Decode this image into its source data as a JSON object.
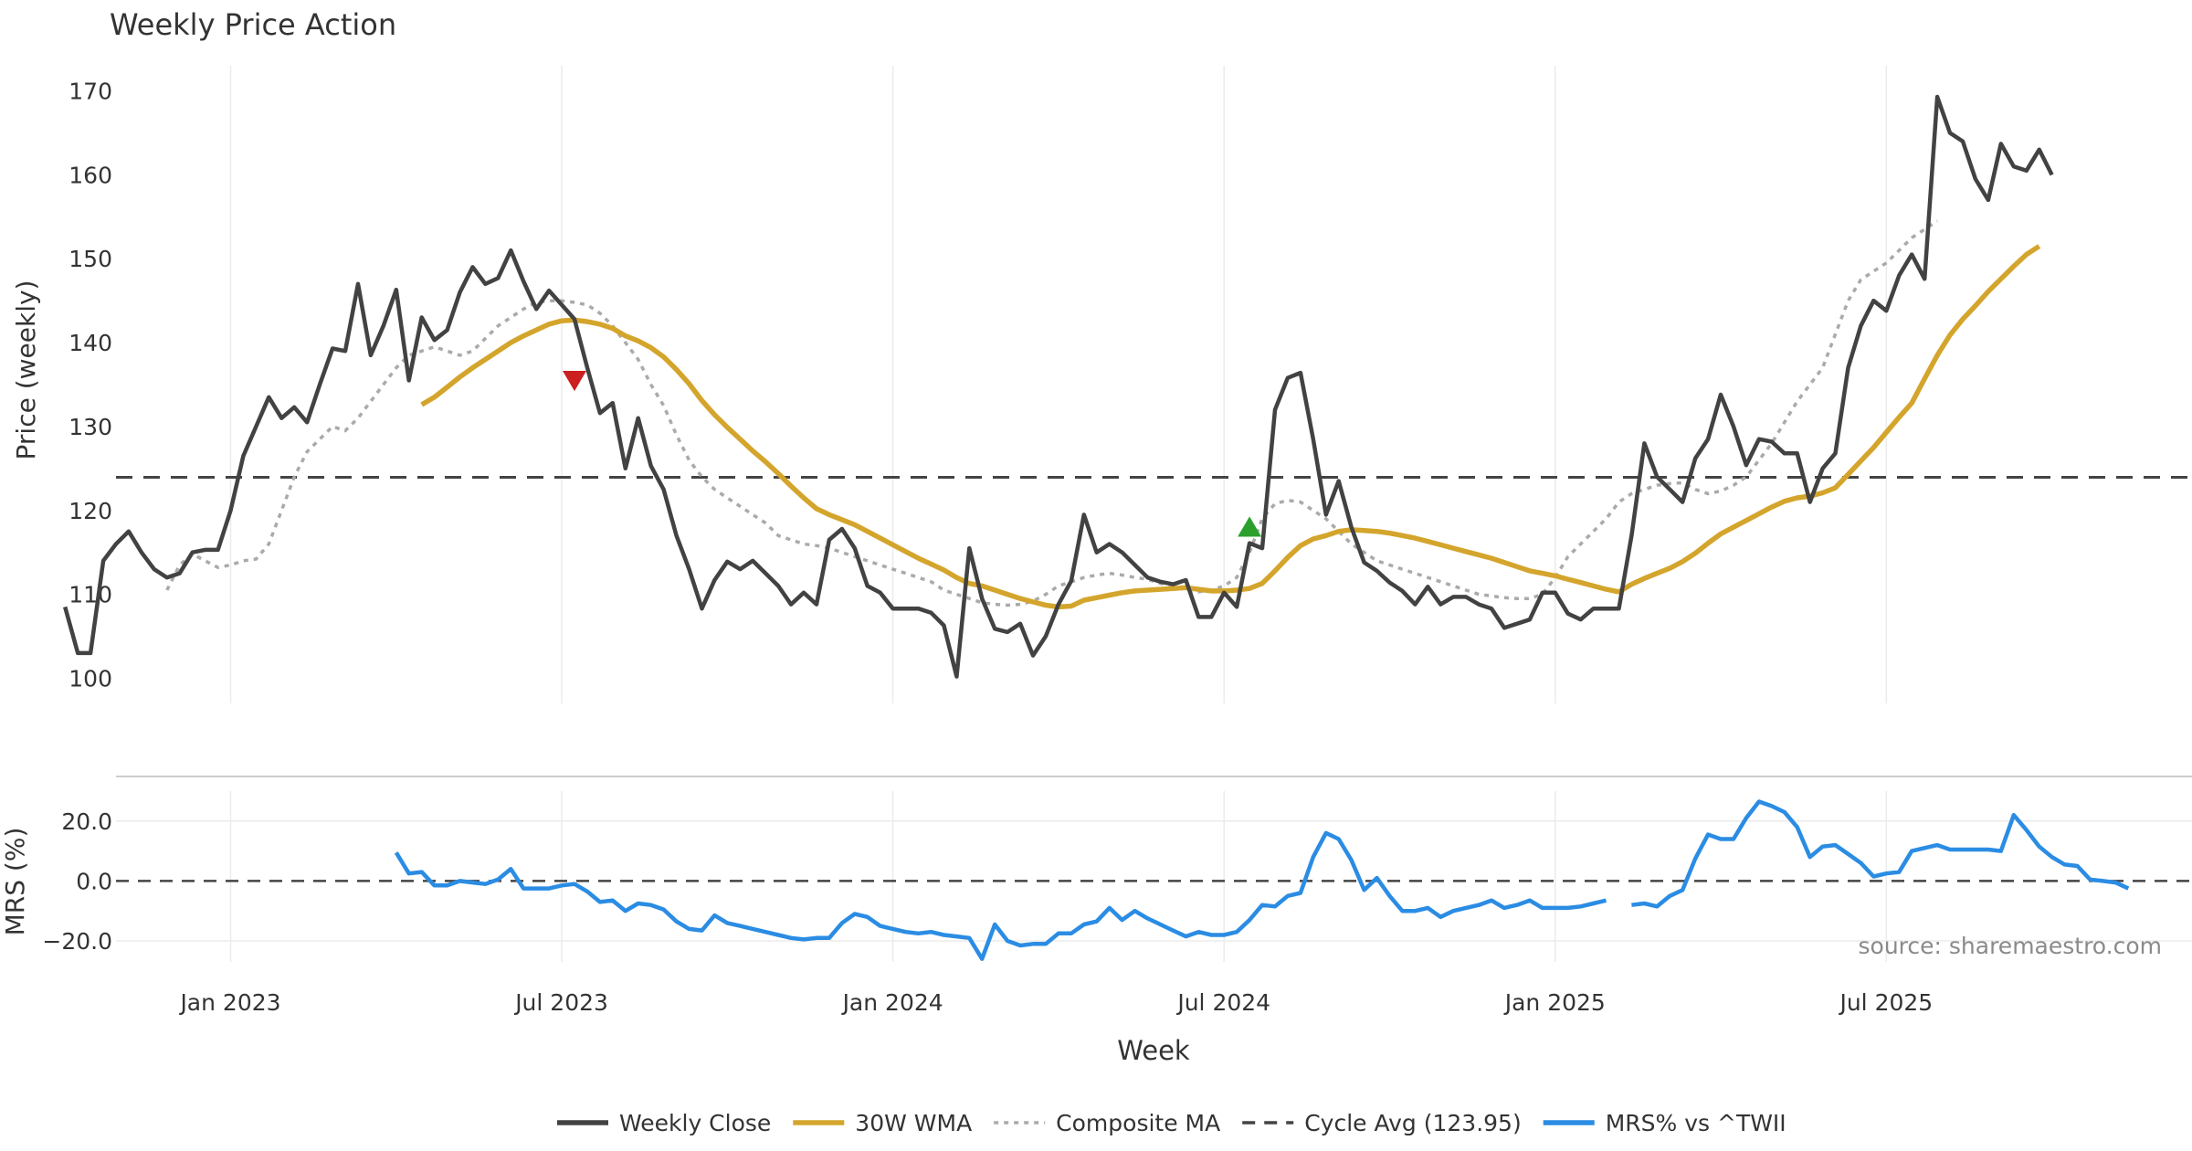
{
  "chart_data": {
    "type": "line",
    "title": "Weekly Price Action",
    "xlabel": "Week",
    "x_ticks": [
      {
        "label": "Jan 2023",
        "week": 13
      },
      {
        "label": "Jul 2023",
        "week": 39
      },
      {
        "label": "Jan 2024",
        "week": 65
      },
      {
        "label": "Jul 2024",
        "week": 91
      },
      {
        "label": "Jan 2025",
        "week": 117
      },
      {
        "label": "Jul 2025",
        "week": 143
      }
    ],
    "x_range": [
      4,
      167
    ],
    "price_panel": {
      "ylabel": "Price (weekly)",
      "ylim": [
        97,
        173
      ],
      "yticks": [
        {
          "v": 100,
          "label": "100"
        },
        {
          "v": 110,
          "label": "110"
        },
        {
          "v": 120,
          "label": "120"
        },
        {
          "v": 130,
          "label": "130"
        },
        {
          "v": 140,
          "label": "140"
        },
        {
          "v": 150,
          "label": "150"
        },
        {
          "v": 160,
          "label": "160"
        },
        {
          "v": 170,
          "label": "170"
        }
      ],
      "cycle_avg": 123.95,
      "series": {
        "weekly_close": [
          108.5,
          103,
          103,
          114,
          116,
          117.5,
          115,
          113,
          112,
          112.5,
          115,
          115.3,
          115.3,
          120,
          126.5,
          130,
          133.5,
          131,
          132.3,
          130.5,
          135,
          139.3,
          139,
          147,
          138.5,
          142,
          146.3,
          135.5,
          143,
          140.3,
          141.5,
          146,
          149,
          147,
          147.7,
          151,
          147.3,
          144,
          146.2,
          144.5,
          142.8,
          137,
          131.6,
          132.8,
          125,
          131,
          125.3,
          122.5,
          117,
          113,
          108.3,
          111.7,
          113.9,
          113,
          114,
          112.5,
          111,
          108.8,
          110.2,
          108.8,
          116.5,
          117.8,
          115.5,
          111,
          110.2,
          108.3,
          108.3,
          108.3,
          107.8,
          106.3,
          100.2,
          115.5,
          109.5,
          105.9,
          105.5,
          106.5,
          102.7,
          105,
          108.8,
          111.6,
          119.5,
          115,
          116,
          115,
          113.5,
          112,
          111.5,
          111.2,
          111.7,
          107.3,
          107.3,
          110.2,
          108.5,
          116.1,
          115.5,
          132,
          135.8,
          136.4,
          128.5,
          119.5,
          123.5,
          118,
          113.8,
          112.8,
          111.4,
          110.4,
          108.8,
          110.9,
          108.8,
          109.7,
          109.7,
          108.8,
          108.3,
          106,
          106.5,
          107,
          110.2,
          110.2,
          107.7,
          107,
          108.3,
          108.3,
          108.3,
          117,
          128,
          124,
          122.5,
          121,
          126.2,
          128.5,
          133.8,
          130,
          125.4,
          128.5,
          128.2,
          126.8,
          126.8,
          121,
          125,
          126.8,
          137,
          142,
          145,
          143.8,
          148,
          150.5,
          147.6,
          169.3,
          165,
          164,
          159.5,
          157,
          163.7,
          161,
          160.5,
          163,
          160
        ],
        "wma30": [
          null,
          null,
          null,
          null,
          null,
          null,
          null,
          null,
          null,
          null,
          null,
          null,
          null,
          null,
          null,
          null,
          null,
          null,
          null,
          null,
          null,
          null,
          null,
          null,
          null,
          null,
          null,
          null,
          132.6,
          133.5,
          134.7,
          135.9,
          137,
          138,
          139,
          140,
          140.8,
          141.5,
          142.2,
          142.6,
          142.7,
          142.5,
          142.2,
          141.7,
          140.8,
          140.2,
          139.4,
          138.3,
          136.8,
          135.1,
          133.1,
          131.4,
          129.9,
          128.5,
          127.1,
          125.8,
          124.4,
          122.9,
          121.5,
          120.2,
          119.5,
          118.9,
          118.3,
          117.5,
          116.7,
          115.9,
          115.1,
          114.3,
          113.6,
          112.9,
          112,
          111.3,
          111,
          110.5,
          110,
          109.5,
          109.1,
          108.7,
          108.5,
          108.6,
          109.3,
          109.6,
          109.9,
          110.2,
          110.4,
          110.5,
          110.6,
          110.7,
          110.8,
          110.6,
          110.4,
          110.4,
          110.5,
          110.7,
          111.3,
          112.8,
          114.4,
          115.8,
          116.6,
          117,
          117.5,
          117.7,
          117.6,
          117.5,
          117.3,
          117,
          116.7,
          116.3,
          115.9,
          115.5,
          115.1,
          114.7,
          114.3,
          113.8,
          113.3,
          112.8,
          112.5,
          112.2,
          111.8,
          111.4,
          111,
          110.6,
          110.3,
          111.2,
          111.9,
          112.5,
          113.1,
          113.9,
          114.9,
          116.1,
          117.2,
          118,
          118.8,
          119.6,
          120.4,
          121.1,
          121.5,
          121.7,
          122.1,
          122.7,
          124.3,
          125.9,
          127.5,
          129.3,
          131.1,
          132.8,
          135.7,
          138.5,
          140.9,
          142.8,
          144.4,
          146.1,
          147.6,
          149.1,
          150.5,
          151.5
        ]
      },
      "composite_ma_anchors": [
        [
          8,
          110.5
        ],
        [
          9,
          113.5
        ],
        [
          10,
          114.8
        ],
        [
          11,
          114
        ],
        [
          12,
          113.2
        ],
        [
          13,
          113.5
        ],
        [
          14,
          114
        ],
        [
          15,
          114.2
        ],
        [
          16,
          116
        ],
        [
          17,
          120
        ],
        [
          18,
          124
        ],
        [
          19,
          127
        ],
        [
          20,
          128.5
        ],
        [
          21,
          130
        ],
        [
          22,
          129.5
        ],
        [
          23,
          131
        ],
        [
          24,
          133
        ],
        [
          25,
          135
        ],
        [
          26,
          137
        ],
        [
          27,
          138.5
        ],
        [
          28,
          139
        ],
        [
          29,
          139.5
        ],
        [
          30,
          139
        ],
        [
          31,
          138.5
        ],
        [
          32,
          139
        ],
        [
          33,
          140.5
        ],
        [
          34,
          142
        ],
        [
          35,
          143
        ],
        [
          36,
          144
        ],
        [
          37,
          144.8
        ],
        [
          38,
          145
        ],
        [
          39,
          145
        ],
        [
          40,
          144.8
        ],
        [
          41,
          144.5
        ],
        [
          42,
          143.5
        ],
        [
          43,
          142
        ],
        [
          44,
          140
        ],
        [
          45,
          138
        ],
        [
          46,
          135
        ],
        [
          47,
          132.5
        ],
        [
          48,
          129
        ],
        [
          49,
          126
        ],
        [
          50,
          124
        ],
        [
          51,
          122.5
        ],
        [
          52,
          121.5
        ],
        [
          53,
          120.5
        ],
        [
          54,
          119.5
        ],
        [
          55,
          118.5
        ],
        [
          56,
          117
        ],
        [
          57,
          116.5
        ],
        [
          58,
          116
        ],
        [
          59,
          115.8
        ],
        [
          60,
          115.5
        ],
        [
          61,
          115
        ],
        [
          62,
          114.5
        ],
        [
          63,
          114
        ],
        [
          64,
          113.5
        ],
        [
          65,
          113
        ],
        [
          66,
          112.5
        ],
        [
          67,
          112
        ],
        [
          68,
          111.5
        ],
        [
          69,
          110.5
        ],
        [
          70,
          110
        ],
        [
          71,
          109.5
        ],
        [
          72,
          109
        ],
        [
          73,
          108.8
        ],
        [
          74,
          108.7
        ],
        [
          75,
          108.8
        ],
        [
          76,
          109.2
        ],
        [
          77,
          110
        ],
        [
          78,
          111
        ],
        [
          79,
          111.5
        ],
        [
          80,
          112
        ],
        [
          81,
          112.3
        ],
        [
          82,
          112.5
        ],
        [
          83,
          112.3
        ],
        [
          84,
          112
        ],
        [
          85,
          111.8
        ],
        [
          86,
          111.3
        ],
        [
          87,
          111
        ],
        [
          88,
          110.5
        ],
        [
          89,
          110.3
        ],
        [
          90,
          110.5
        ],
        [
          91,
          111
        ],
        [
          92,
          112
        ],
        [
          93,
          115
        ],
        [
          94,
          119
        ],
        [
          95,
          120.8
        ],
        [
          96,
          121.2
        ],
        [
          97,
          121
        ],
        [
          98,
          120
        ],
        [
          99,
          119
        ],
        [
          100,
          117.5
        ],
        [
          101,
          116
        ],
        [
          102,
          115
        ],
        [
          103,
          114
        ],
        [
          104,
          113.5
        ],
        [
          105,
          113
        ],
        [
          106,
          112.5
        ],
        [
          107,
          112
        ],
        [
          108,
          111.5
        ],
        [
          109,
          111
        ],
        [
          110,
          110.5
        ],
        [
          111,
          110
        ],
        [
          112,
          109.8
        ],
        [
          113,
          109.6
        ],
        [
          114,
          109.5
        ],
        [
          115,
          109.5
        ],
        [
          116,
          110
        ],
        [
          117,
          112
        ],
        [
          118,
          114.5
        ],
        [
          119,
          116
        ],
        [
          120,
          117.5
        ],
        [
          121,
          119
        ],
        [
          122,
          121
        ],
        [
          123,
          122
        ],
        [
          124,
          122.5
        ],
        [
          125,
          123
        ],
        [
          126,
          123.2
        ],
        [
          127,
          123.3
        ],
        [
          128,
          122.5
        ],
        [
          129,
          122
        ],
        [
          130,
          122.3
        ],
        [
          131,
          123
        ],
        [
          132,
          124
        ],
        [
          133,
          126
        ],
        [
          134,
          128
        ],
        [
          135,
          130.5
        ],
        [
          136,
          133
        ],
        [
          137,
          135
        ],
        [
          138,
          137
        ],
        [
          139,
          141
        ],
        [
          140,
          145
        ],
        [
          141,
          147.5
        ],
        [
          142,
          148.5
        ],
        [
          143,
          149.5
        ],
        [
          144,
          151
        ],
        [
          145,
          152.5
        ],
        [
          146,
          153.5
        ],
        [
          147,
          154.5
        ]
      ],
      "markers": [
        {
          "type": "sell",
          "week": 40,
          "value": 135.5,
          "color": "#cc1f1f"
        },
        {
          "type": "buy",
          "week": 93,
          "value": 118,
          "color": "#2ca02c"
        }
      ]
    },
    "mrs_panel": {
      "ylabel": "MRS (%)",
      "ylim": [
        -27,
        30
      ],
      "yticks": [
        {
          "v": 20,
          "label": "20.0"
        },
        {
          "v": 0,
          "label": "0.0"
        },
        {
          "v": -20,
          "label": "−20.0"
        }
      ],
      "series": {
        "mrs": [
          null,
          null,
          null,
          null,
          null,
          null,
          null,
          null,
          null,
          null,
          null,
          null,
          null,
          null,
          null,
          null,
          null,
          null,
          null,
          null,
          null,
          null,
          null,
          null,
          null,
          null,
          9.5,
          2.5,
          3,
          -1.5,
          -1.5,
          0,
          -0.5,
          -1,
          0.5,
          4,
          -2.5,
          -2.5,
          -2.5,
          -1.5,
          -1,
          -3.5,
          -7,
          -6.5,
          -10,
          -7.5,
          -8,
          -9.5,
          -13.5,
          -16,
          -16.5,
          -11.5,
          -14,
          -15,
          -16,
          -17,
          -18,
          -19,
          -19.5,
          -19,
          -19,
          -14,
          -11,
          -12,
          -15,
          -16,
          -17,
          -17.5,
          -17,
          -18,
          -18.5,
          -19,
          -26,
          -14.5,
          -20,
          -21.5,
          -21,
          -21,
          -17.5,
          -17.5,
          -14.5,
          -13.5,
          -9,
          -13,
          -10,
          -12.5,
          -14.5,
          -16.5,
          -18.5,
          -17,
          -18,
          -18,
          -17,
          -13,
          -8,
          -8.5,
          -5,
          -4,
          8,
          16,
          14,
          7,
          -3,
          1,
          -5,
          -10,
          -10,
          -9,
          -12,
          -10,
          -9,
          -8,
          -6.5,
          -9,
          -8,
          -6.5,
          -9,
          -9,
          -9,
          -8.5,
          -7.5,
          -6.5,
          null,
          -8,
          -7.5,
          -8.5,
          -5,
          -3,
          7.5,
          15.5,
          14,
          14,
          21,
          26.5,
          25,
          23,
          18,
          8,
          11.5,
          12,
          9,
          6,
          1.5,
          2.5,
          3,
          10,
          11,
          12,
          10.5,
          10.5,
          10.5,
          10.5,
          10,
          22,
          17,
          11.5,
          8,
          5.5,
          5,
          0.5,
          0,
          -0.5,
          -2.5
        ]
      }
    },
    "legend": [
      {
        "label": "Weekly Close",
        "color": "#424242",
        "style": "solid"
      },
      {
        "label": "30W WMA",
        "color": "#d4a52c",
        "style": "solid"
      },
      {
        "label": "Composite MA",
        "color": "#aaaaaa",
        "style": "dotted"
      },
      {
        "label": "Cycle Avg (123.95)",
        "color": "#444444",
        "style": "dashed"
      },
      {
        "label": "MRS% vs ^TWII",
        "color": "#2b8ce3",
        "style": "solid"
      }
    ],
    "source_note": "source: sharemaestro.com"
  },
  "colors": {
    "close": "#424242",
    "wma": "#d4a52c",
    "composite": "#aaaaaa",
    "cycle": "#444444",
    "mrs": "#2b8ce3",
    "grid": "#ebebeb"
  }
}
